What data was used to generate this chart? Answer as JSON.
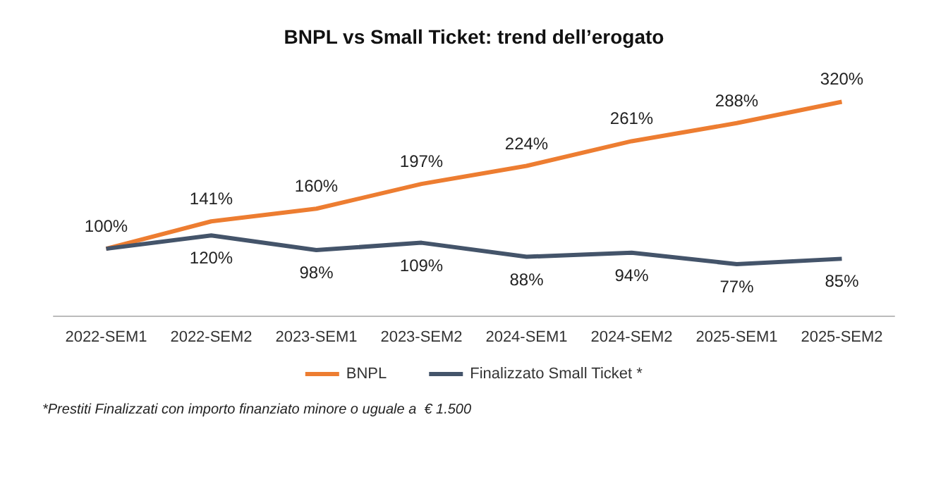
{
  "chart_data": {
    "type": "line",
    "title": "BNPL vs Small Ticket: trend dell’erogato",
    "categories": [
      "2022-SEM1",
      "2022-SEM2",
      "2023-SEM1",
      "2023-SEM2",
      "2024-SEM1",
      "2024-SEM2",
      "2025-SEM1",
      "2025-SEM2"
    ],
    "series": [
      {
        "name": "BNPL",
        "color": "#ed7d31",
        "values": [
          100,
          141,
          160,
          197,
          224,
          261,
          288,
          320
        ],
        "value_labels": [
          "100%",
          "141%",
          "160%",
          "197%",
          "224%",
          "261%",
          "288%",
          "320%"
        ]
      },
      {
        "name": "Finalizzato Small Ticket *",
        "color": "#44546a",
        "values": [
          100,
          120,
          98,
          109,
          88,
          94,
          77,
          85
        ],
        "value_labels": [
          null,
          "120%",
          "98%",
          "109%",
          "88%",
          "94%",
          "77%",
          "85%"
        ]
      }
    ],
    "grid": false,
    "legend": "bottom",
    "marker": "none",
    "tick_labels": "x",
    "annotations": [
      "*Prestiti Finalizzati con importo finanziato minore o uguale a  € 1.500"
    ]
  }
}
